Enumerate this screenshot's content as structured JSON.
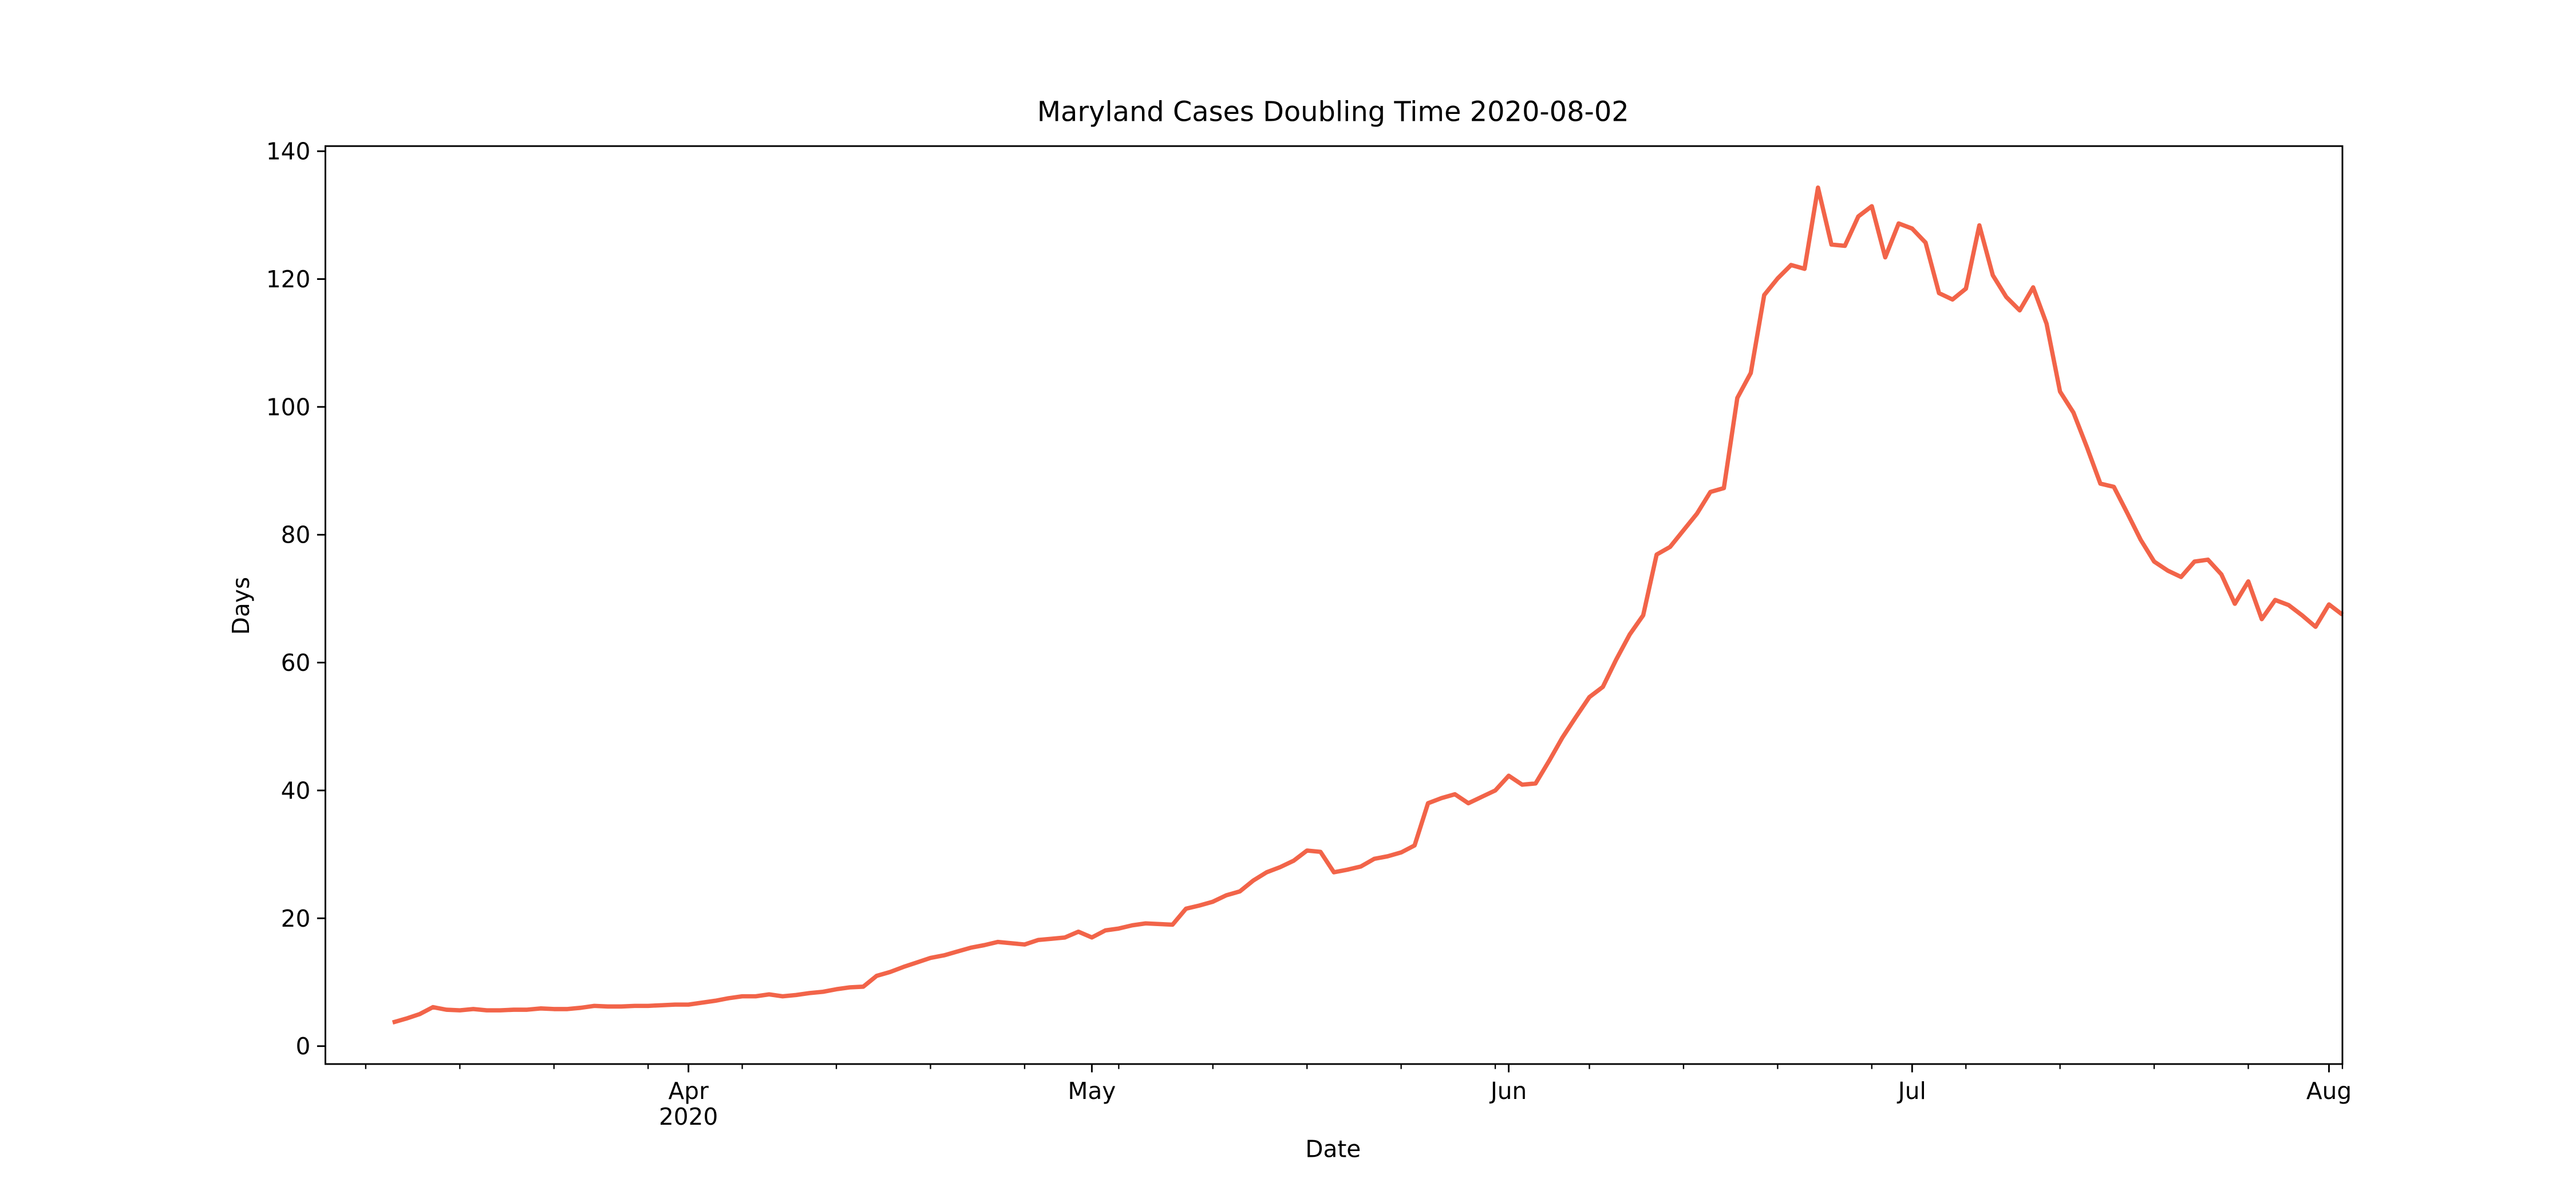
{
  "chart_data": {
    "type": "line",
    "title": "Maryland Cases Doubling Time 2020-08-02",
    "xlabel": "Date",
    "ylabel": "Days",
    "color": "#f26449",
    "x": [
      "2020-03-10",
      "2020-03-11",
      "2020-03-12",
      "2020-03-13",
      "2020-03-14",
      "2020-03-15",
      "2020-03-16",
      "2020-03-17",
      "2020-03-18",
      "2020-03-19",
      "2020-03-20",
      "2020-03-21",
      "2020-03-22",
      "2020-03-23",
      "2020-03-24",
      "2020-03-25",
      "2020-03-26",
      "2020-03-27",
      "2020-03-28",
      "2020-03-29",
      "2020-03-30",
      "2020-03-31",
      "2020-04-01",
      "2020-04-02",
      "2020-04-03",
      "2020-04-04",
      "2020-04-05",
      "2020-04-06",
      "2020-04-07",
      "2020-04-08",
      "2020-04-09",
      "2020-04-10",
      "2020-04-11",
      "2020-04-12",
      "2020-04-13",
      "2020-04-14",
      "2020-04-15",
      "2020-04-16",
      "2020-04-17",
      "2020-04-18",
      "2020-04-19",
      "2020-04-20",
      "2020-04-21",
      "2020-04-22",
      "2020-04-23",
      "2020-04-24",
      "2020-04-25",
      "2020-04-26",
      "2020-04-27",
      "2020-04-28",
      "2020-04-29",
      "2020-04-30",
      "2020-05-01",
      "2020-05-02",
      "2020-05-03",
      "2020-05-04",
      "2020-05-05",
      "2020-05-06",
      "2020-05-07",
      "2020-05-08",
      "2020-05-09",
      "2020-05-10",
      "2020-05-11",
      "2020-05-12",
      "2020-05-13",
      "2020-05-14",
      "2020-05-15",
      "2020-05-16",
      "2020-05-17",
      "2020-05-18",
      "2020-05-19",
      "2020-05-20",
      "2020-05-21",
      "2020-05-22",
      "2020-05-23",
      "2020-05-24",
      "2020-05-25",
      "2020-05-26",
      "2020-05-27",
      "2020-05-28",
      "2020-05-29",
      "2020-05-30",
      "2020-05-31",
      "2020-06-01",
      "2020-06-02",
      "2020-06-03",
      "2020-06-04",
      "2020-06-05",
      "2020-06-06",
      "2020-06-07",
      "2020-06-08",
      "2020-06-09",
      "2020-06-10",
      "2020-06-11",
      "2020-06-12",
      "2020-06-13",
      "2020-06-14",
      "2020-06-15",
      "2020-06-16",
      "2020-06-17",
      "2020-06-18",
      "2020-06-19",
      "2020-06-20",
      "2020-06-21",
      "2020-06-22",
      "2020-06-23",
      "2020-06-24",
      "2020-06-25",
      "2020-06-26",
      "2020-06-27",
      "2020-06-28",
      "2020-06-29",
      "2020-06-30",
      "2020-07-01",
      "2020-07-02",
      "2020-07-03",
      "2020-07-04",
      "2020-07-05",
      "2020-07-06",
      "2020-07-07",
      "2020-07-08",
      "2020-07-09",
      "2020-07-10",
      "2020-07-11",
      "2020-07-12",
      "2020-07-13",
      "2020-07-14",
      "2020-07-15",
      "2020-07-16",
      "2020-07-17",
      "2020-07-18",
      "2020-07-19",
      "2020-07-20",
      "2020-07-21",
      "2020-07-22",
      "2020-07-23",
      "2020-07-24",
      "2020-07-25",
      "2020-07-26",
      "2020-07-27",
      "2020-07-28",
      "2020-07-29",
      "2020-07-30",
      "2020-07-31",
      "2020-08-01",
      "2020-08-02"
    ],
    "values": [
      3.7,
      4.3,
      5.0,
      6.1,
      5.7,
      5.6,
      5.8,
      5.6,
      5.6,
      5.7,
      5.7,
      5.9,
      5.8,
      5.8,
      6.0,
      6.3,
      6.2,
      6.2,
      6.3,
      6.3,
      6.4,
      6.5,
      6.5,
      6.8,
      7.1,
      7.5,
      7.8,
      7.8,
      8.1,
      7.8,
      8.0,
      8.3,
      8.5,
      8.9,
      9.2,
      9.3,
      11.0,
      11.6,
      12.4,
      13.1,
      13.8,
      14.2,
      14.8,
      15.4,
      15.8,
      16.3,
      16.1,
      15.9,
      16.6,
      16.8,
      17.0,
      17.9,
      17.0,
      18.1,
      18.4,
      18.9,
      19.2,
      19.1,
      19.0,
      21.5,
      22.0,
      22.6,
      23.6,
      24.2,
      25.9,
      27.2,
      28.0,
      29.0,
      30.6,
      30.4,
      27.2,
      27.6,
      28.1,
      29.3,
      29.7,
      30.3,
      31.4,
      38.0,
      38.8,
      39.4,
      38.0,
      39.0,
      40.0,
      42.3,
      40.9,
      41.1,
      44.6,
      48.3,
      51.5,
      54.6,
      56.2,
      60.5,
      64.4,
      67.4,
      76.9,
      78.1,
      80.7,
      83.3,
      86.7,
      87.3,
      101.4,
      105.3,
      117.5,
      120.1,
      122.2,
      121.6,
      134.3,
      125.4,
      125.2,
      129.8,
      131.4,
      123.4,
      128.7,
      127.9,
      125.7,
      117.8,
      116.8,
      118.5,
      128.4,
      120.6,
      117.2,
      115.1,
      118.7,
      113.0,
      102.4,
      99.1,
      93.7,
      88.0,
      87.5,
      83.4,
      79.2,
      75.8,
      74.4,
      73.4,
      75.8,
      76.1,
      73.8,
      69.2,
      72.7,
      66.8,
      69.8,
      69.0,
      67.4,
      65.6,
      69.1,
      67.5
    ],
    "xlim": [
      "2020-03-05",
      "2020-08-02"
    ],
    "xticks": [
      {
        "value": "2020-04-01",
        "label": "Apr\n2020"
      },
      {
        "value": "2020-05-01",
        "label": "May"
      },
      {
        "value": "2020-06-01",
        "label": "Jun"
      },
      {
        "value": "2020-07-01",
        "label": "Jul"
      },
      {
        "value": "2020-08-01",
        "label": "Aug"
      }
    ],
    "xminorticks": [
      "2020-03-08",
      "2020-03-15",
      "2020-03-22",
      "2020-03-29",
      "2020-04-05",
      "2020-04-12",
      "2020-04-19",
      "2020-04-26",
      "2020-05-03",
      "2020-05-10",
      "2020-05-17",
      "2020-05-24",
      "2020-05-31",
      "2020-06-07",
      "2020-06-14",
      "2020-06-21",
      "2020-06-28",
      "2020-07-05",
      "2020-07-12",
      "2020-07-19",
      "2020-07-26",
      "2020-08-02"
    ],
    "ylim": [
      -2.8,
      140.8
    ],
    "yticks": [
      0,
      20,
      40,
      60,
      80,
      100,
      120,
      140
    ],
    "grid": false
  }
}
